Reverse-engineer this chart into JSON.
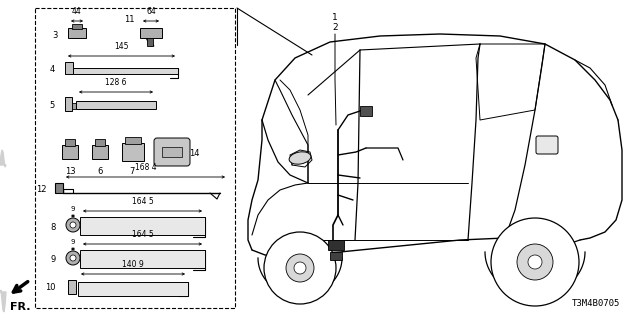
{
  "bg_color": "#ffffff",
  "line_color": "#000000",
  "part_number": "T3M4B0705",
  "fig_w": 6.4,
  "fig_h": 3.2,
  "dpi": 100
}
